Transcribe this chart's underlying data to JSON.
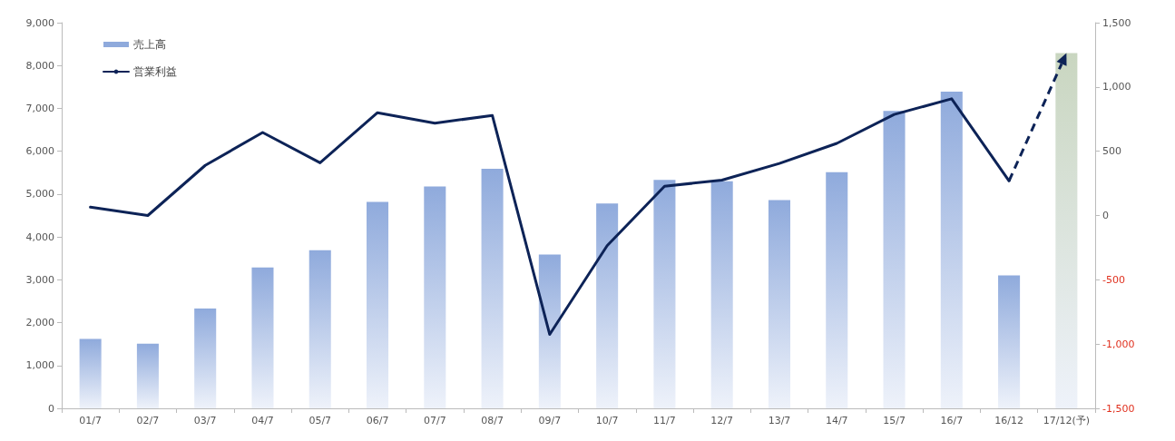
{
  "chart_data": {
    "type": "bar",
    "categories": [
      "01/7",
      "02/7",
      "03/7",
      "04/7",
      "05/7",
      "06/7",
      "07/7",
      "08/7",
      "09/7",
      "10/7",
      "11/7",
      "12/7",
      "13/7",
      "14/7",
      "15/7",
      "16/7",
      "16/12",
      "17/12(予)"
    ],
    "series": [
      {
        "name": "売上高",
        "color": "#8faadc",
        "colors": [
          "#8faadc",
          "#8faadc",
          "#8faadc",
          "#8faadc",
          "#8faadc",
          "#8faadc",
          "#8faadc",
          "#8faadc",
          "#8faadc",
          "#8faadc",
          "#8faadc",
          "#8faadc",
          "#8faadc",
          "#8faadc",
          "#8faadc",
          "#8faadc",
          "#8faadc",
          "#c9d6c0"
        ],
        "values": [
          1620,
          1510,
          2330,
          3290,
          3690,
          4820,
          5180,
          5590,
          3590,
          4780,
          5330,
          5300,
          4860,
          5510,
          6940,
          7390,
          3100,
          8290
        ]
      },
      {
        "name": "営業利益",
        "type": "line",
        "axis": "y2",
        "color": "#0d2357",
        "line_style": "solid",
        "values": [
          65,
          0,
          390,
          646,
          410,
          800,
          718,
          779,
          -925,
          -235,
          228,
          275,
          405,
          561,
          786,
          908,
          269,
          null
        ]
      }
    ],
    "ylim": [
      0,
      9000
    ],
    "yticks": [
      0,
      {
        "value": 1000,
        "label": "1,000"
      },
      {
        "value": 2000,
        "label": "2,000"
      },
      {
        "value": 3000,
        "label": "3,000"
      },
      {
        "value": 4000,
        "label": "4,000"
      },
      {
        "value": 5000,
        "label": "5,000"
      },
      {
        "value": 6000,
        "label": "6,000"
      },
      {
        "value": 7000,
        "label": "7,000"
      },
      {
        "value": 8000,
        "label": "8,000"
      },
      {
        "value": 9000,
        "label": "9,000"
      }
    ],
    "y2lim": [
      -1500,
      1500
    ],
    "y2ticks": [
      {
        "value": -1500,
        "label": "-1,500"
      },
      {
        "value": -1000,
        "label": "-1,000"
      },
      -500,
      0,
      500,
      {
        "value": 1000,
        "label": "1,000"
      },
      {
        "value": 1500,
        "label": "1,500"
      }
    ],
    "grid": false,
    "legend": "top left",
    "marker": "none"
  }
}
